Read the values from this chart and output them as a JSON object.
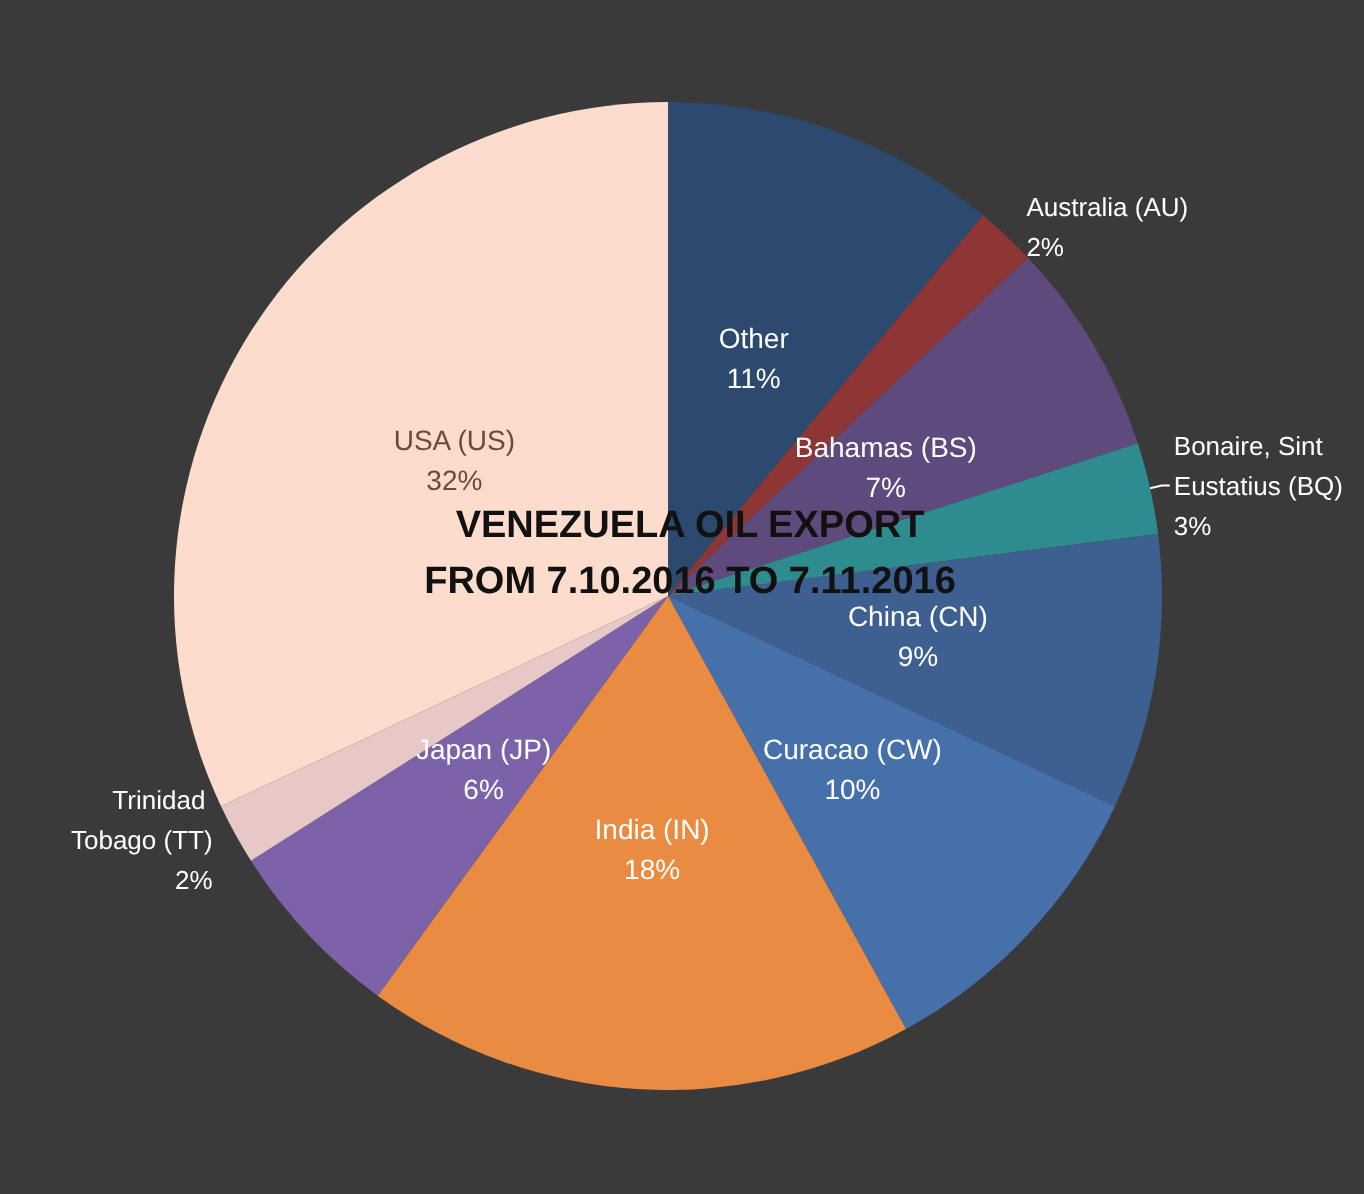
{
  "chart_data": {
    "type": "pie",
    "title": "VENEZUELA OIL EXPORT\nFROM 7.10.2016 TO 7.11.2016",
    "categories": [
      "Other",
      "Australia (AU)",
      "Bahamas (BS)",
      "Bonaire, Sint Eustatius (BQ)",
      "China (CN)",
      "Curacao (CW)",
      "India (IN)",
      "Japan (JP)",
      "Trinidad Tobago (TT)",
      "USA (US)"
    ],
    "values": [
      11,
      2,
      7,
      3,
      9,
      10,
      18,
      6,
      2,
      32
    ],
    "value_labels": [
      "11%",
      "2%",
      "7%",
      "3%",
      "9%",
      "10%",
      "18%",
      "6%",
      "2%",
      "32%"
    ],
    "colors": [
      "#2c4a70",
      "#8e3535",
      "#5e4a7c",
      "#2e8b8e",
      "#3e6091",
      "#4670aa",
      "#e98b40",
      "#7c62a8",
      "#e8c7c7",
      "#fcdccc"
    ],
    "legend": false
  }
}
